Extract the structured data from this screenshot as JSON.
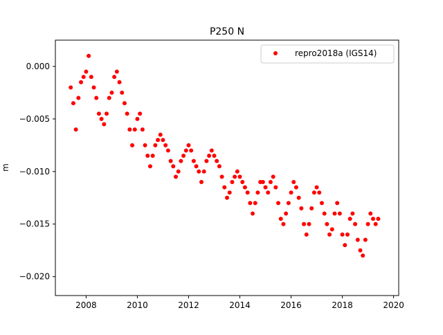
{
  "chart_data": {
    "type": "scatter",
    "title": "P250 N",
    "xlabel": "",
    "ylabel": "m",
    "xlim": [
      2006.8,
      2020.2
    ],
    "ylim": [
      -0.0218,
      0.0025
    ],
    "x_ticks": [
      2008,
      2010,
      2012,
      2014,
      2016,
      2018,
      2020
    ],
    "x_tick_labels": [
      "2008",
      "2010",
      "2012",
      "2014",
      "2016",
      "2018",
      "2020"
    ],
    "y_ticks": [
      0.0,
      -0.005,
      -0.01,
      -0.015,
      -0.02
    ],
    "y_tick_labels": [
      "0.000",
      "−0.005",
      "−0.010",
      "−0.015",
      "−0.020"
    ],
    "grid": false,
    "legend": {
      "position": "top-right",
      "entries": [
        "repro2018a (IGS14)"
      ]
    },
    "series": [
      {
        "name": "repro2018a (IGS14)",
        "color": "#ff0000",
        "marker": "circle",
        "points": [
          [
            2007.4,
            -0.002
          ],
          [
            2007.5,
            -0.0035
          ],
          [
            2007.6,
            -0.006
          ],
          [
            2007.7,
            -0.003
          ],
          [
            2007.8,
            -0.0015
          ],
          [
            2007.9,
            -0.001
          ],
          [
            2008.0,
            -0.0005
          ],
          [
            2008.1,
            0.001
          ],
          [
            2008.2,
            -0.001
          ],
          [
            2008.3,
            -0.002
          ],
          [
            2008.4,
            -0.003
          ],
          [
            2008.5,
            -0.0045
          ],
          [
            2008.6,
            -0.005
          ],
          [
            2008.7,
            -0.0055
          ],
          [
            2008.8,
            -0.0045
          ],
          [
            2008.9,
            -0.003
          ],
          [
            2009.0,
            -0.0025
          ],
          [
            2009.1,
            -0.001
          ],
          [
            2009.2,
            -0.0005
          ],
          [
            2009.3,
            -0.0015
          ],
          [
            2009.4,
            -0.0025
          ],
          [
            2009.5,
            -0.0035
          ],
          [
            2009.6,
            -0.0045
          ],
          [
            2009.7,
            -0.006
          ],
          [
            2009.8,
            -0.0075
          ],
          [
            2009.9,
            -0.006
          ],
          [
            2010.0,
            -0.005
          ],
          [
            2010.1,
            -0.0045
          ],
          [
            2010.2,
            -0.006
          ],
          [
            2010.3,
            -0.0075
          ],
          [
            2010.4,
            -0.0085
          ],
          [
            2010.5,
            -0.0095
          ],
          [
            2010.6,
            -0.0085
          ],
          [
            2010.7,
            -0.0075
          ],
          [
            2010.8,
            -0.007
          ],
          [
            2010.9,
            -0.0065
          ],
          [
            2011.0,
            -0.007
          ],
          [
            2011.1,
            -0.0075
          ],
          [
            2011.2,
            -0.008
          ],
          [
            2011.3,
            -0.009
          ],
          [
            2011.4,
            -0.0095
          ],
          [
            2011.5,
            -0.0105
          ],
          [
            2011.6,
            -0.01
          ],
          [
            2011.7,
            -0.009
          ],
          [
            2011.8,
            -0.0085
          ],
          [
            2011.9,
            -0.008
          ],
          [
            2012.0,
            -0.0075
          ],
          [
            2012.1,
            -0.008
          ],
          [
            2012.2,
            -0.009
          ],
          [
            2012.3,
            -0.0095
          ],
          [
            2012.4,
            -0.01
          ],
          [
            2012.5,
            -0.011
          ],
          [
            2012.6,
            -0.01
          ],
          [
            2012.7,
            -0.009
          ],
          [
            2012.8,
            -0.0085
          ],
          [
            2012.9,
            -0.008
          ],
          [
            2013.0,
            -0.0085
          ],
          [
            2013.1,
            -0.009
          ],
          [
            2013.2,
            -0.0095
          ],
          [
            2013.3,
            -0.0105
          ],
          [
            2013.4,
            -0.0115
          ],
          [
            2013.5,
            -0.0125
          ],
          [
            2013.6,
            -0.012
          ],
          [
            2013.7,
            -0.011
          ],
          [
            2013.8,
            -0.0105
          ],
          [
            2013.9,
            -0.01
          ],
          [
            2014.0,
            -0.0105
          ],
          [
            2014.1,
            -0.011
          ],
          [
            2014.2,
            -0.0115
          ],
          [
            2014.3,
            -0.012
          ],
          [
            2014.4,
            -0.013
          ],
          [
            2014.5,
            -0.014
          ],
          [
            2014.6,
            -0.013
          ],
          [
            2014.7,
            -0.012
          ],
          [
            2014.8,
            -0.011
          ],
          [
            2014.9,
            -0.011
          ],
          [
            2015.0,
            -0.0115
          ],
          [
            2015.1,
            -0.012
          ],
          [
            2015.2,
            -0.011
          ],
          [
            2015.3,
            -0.0105
          ],
          [
            2015.4,
            -0.0115
          ],
          [
            2015.5,
            -0.013
          ],
          [
            2015.6,
            -0.0145
          ],
          [
            2015.7,
            -0.015
          ],
          [
            2015.8,
            -0.014
          ],
          [
            2015.9,
            -0.013
          ],
          [
            2016.0,
            -0.012
          ],
          [
            2016.1,
            -0.011
          ],
          [
            2016.2,
            -0.0115
          ],
          [
            2016.3,
            -0.0125
          ],
          [
            2016.4,
            -0.0135
          ],
          [
            2016.5,
            -0.015
          ],
          [
            2016.6,
            -0.016
          ],
          [
            2016.7,
            -0.015
          ],
          [
            2016.8,
            -0.0135
          ],
          [
            2016.9,
            -0.012
          ],
          [
            2017.0,
            -0.0115
          ],
          [
            2017.1,
            -0.012
          ],
          [
            2017.2,
            -0.013
          ],
          [
            2017.3,
            -0.014
          ],
          [
            2017.4,
            -0.015
          ],
          [
            2017.5,
            -0.016
          ],
          [
            2017.6,
            -0.0155
          ],
          [
            2017.7,
            -0.014
          ],
          [
            2017.8,
            -0.013
          ],
          [
            2017.9,
            -0.014
          ],
          [
            2018.0,
            -0.016
          ],
          [
            2018.1,
            -0.017
          ],
          [
            2018.2,
            -0.016
          ],
          [
            2018.3,
            -0.0145
          ],
          [
            2018.4,
            -0.014
          ],
          [
            2018.5,
            -0.015
          ],
          [
            2018.6,
            -0.0165
          ],
          [
            2018.7,
            -0.0175
          ],
          [
            2018.8,
            -0.018
          ],
          [
            2018.9,
            -0.0165
          ],
          [
            2019.0,
            -0.015
          ],
          [
            2019.1,
            -0.014
          ],
          [
            2019.2,
            -0.0145
          ],
          [
            2019.3,
            -0.015
          ],
          [
            2019.4,
            -0.0145
          ]
        ]
      }
    ]
  }
}
